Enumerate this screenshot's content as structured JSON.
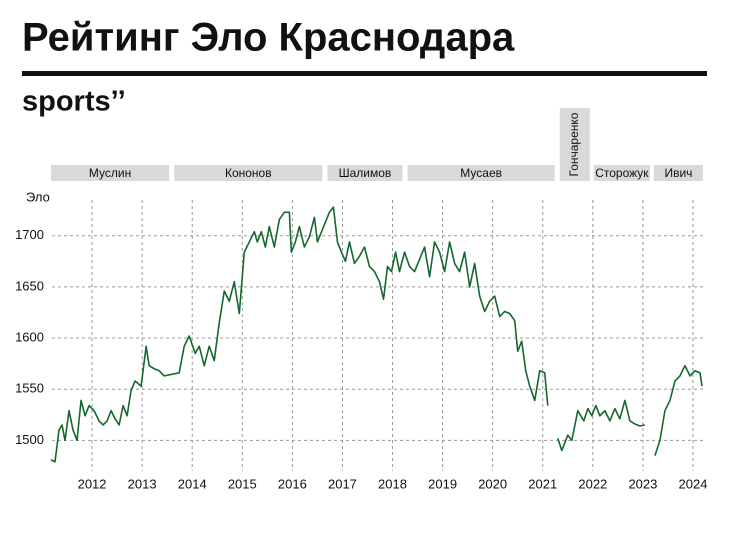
{
  "header": {
    "title": "Рейтинг Эло Краснодара",
    "logo": "sports’’"
  },
  "chart_data": {
    "type": "line",
    "y_label": "Эло",
    "xlim": [
      2011.2,
      2024.2
    ],
    "ylim": [
      1470,
      1735
    ],
    "xticks": [
      2012,
      2013,
      2014,
      2015,
      2016,
      2017,
      2018,
      2019,
      2020,
      2021,
      2022,
      2023,
      2024
    ],
    "yticks": [
      1500,
      1550,
      1600,
      1650,
      1700
    ],
    "grid": true,
    "managers": [
      {
        "name": "Муслин",
        "start": 2011.18,
        "end": 2013.54
      },
      {
        "name": "Кононов",
        "start": 2013.64,
        "end": 2016.6
      },
      {
        "name": "Шалимов",
        "start": 2016.7,
        "end": 2018.2
      },
      {
        "name": "Мусаев",
        "start": 2018.3,
        "end": 2021.24
      },
      {
        "name": "Гончаренко",
        "start": 2021.34,
        "end": 2021.94
      },
      {
        "name": "Сторожук",
        "start": 2022.02,
        "end": 2023.14
      },
      {
        "name": "Ивич",
        "start": 2023.22,
        "end": 2024.2
      }
    ],
    "series": [
      {
        "color": "#16672f",
        "x": [
          2011.18,
          2011.26,
          2011.34,
          2011.4,
          2011.46,
          2011.54,
          2011.62,
          2011.7,
          2011.78,
          2011.86,
          2011.94,
          2012.04,
          2012.14,
          2012.22,
          2012.3,
          2012.38,
          2012.46,
          2012.54,
          2012.62,
          2012.7,
          2012.78,
          2012.86,
          2012.98,
          2013.08,
          2013.14,
          2013.24,
          2013.34,
          2013.44,
          2013.74,
          2013.84,
          2013.94,
          2014.06,
          2014.14,
          2014.24,
          2014.34,
          2014.44,
          2014.54,
          2014.64,
          2014.74,
          2014.84,
          2014.94,
          2015.04,
          2015.14,
          2015.24,
          2015.3,
          2015.38,
          2015.46,
          2015.54,
          2015.64,
          2015.74,
          2015.84,
          2015.94,
          2015.98,
          2016.06,
          2016.14,
          2016.24,
          2016.34,
          2016.44,
          2016.5,
          2016.74,
          2016.82,
          2016.9,
          2016.98,
          2017.06,
          2017.14,
          2017.24,
          2017.34,
          2017.44,
          2017.54,
          2017.64,
          2017.74,
          2017.82,
          2017.9,
          2017.98,
          2018.06,
          2018.14,
          2018.24,
          2018.34,
          2018.44,
          2018.54,
          2018.64,
          2018.74,
          2018.84,
          2018.94,
          2019.04,
          2019.14,
          2019.24,
          2019.34,
          2019.44,
          2019.54,
          2019.64,
          2019.74,
          2019.84,
          2019.94,
          2020.04,
          2020.14,
          2020.24,
          2020.34,
          2020.44,
          2020.5,
          2020.58,
          2020.66,
          2020.74,
          2020.84,
          2020.94,
          2021.04,
          2021.1,
          2021.2,
          2021.3,
          2021.38,
          2021.5,
          2021.58,
          2021.7,
          2021.82,
          2021.9,
          2021.98,
          2022.06,
          2022.14,
          2022.24,
          2022.34,
          2022.44,
          2022.54,
          2022.64,
          2022.74,
          2022.84,
          2022.94,
          2023.04,
          2023.14,
          2023.24,
          2023.34,
          2023.44,
          2023.54,
          2023.64,
          2023.74,
          2023.84,
          2023.94,
          2024.04,
          2024.14,
          2024.18
        ],
        "values": [
          1481,
          1479,
          1510,
          1515,
          1500,
          1529,
          1510,
          1500,
          1539,
          1524,
          1534,
          1529,
          1519,
          1515,
          1519,
          1529,
          1521,
          1515,
          1534,
          1524,
          1549,
          1558,
          1553,
          1592,
          1573,
          1570,
          1568,
          1563,
          1566,
          1592,
          1602,
          1585,
          1592,
          1573,
          1592,
          1578,
          1615,
          1646,
          1636,
          1655,
          1624,
          1684,
          1694,
          1704,
          1694,
          1704,
          1689,
          1709,
          1689,
          1716,
          1723,
          1723,
          1684,
          1694,
          1709,
          1689,
          1699,
          1718,
          1694,
          1723,
          1728,
          1694,
          1684,
          1675,
          1694,
          1673,
          1680,
          1689,
          1670,
          1665,
          1655,
          1638,
          1670,
          1665,
          1684,
          1665,
          1684,
          1670,
          1665,
          1677,
          1689,
          1660,
          1694,
          1684,
          1665,
          1694,
          1673,
          1665,
          1684,
          1650,
          1673,
          1641,
          1626,
          1636,
          1641,
          1621,
          1626,
          1624,
          1617,
          1587,
          1597,
          1568,
          1553,
          1539,
          1568,
          1566,
          1534,
          null,
          1502,
          1490,
          1505,
          1500,
          1529,
          1519,
          1531,
          1524,
          1534,
          1524,
          1529,
          1519,
          1531,
          1521,
          1539,
          1519,
          1516,
          1514,
          1515,
          null,
          1485,
          1500,
          1529,
          1539,
          1558,
          1563,
          1573,
          1563,
          1568,
          1566,
          1553
        ]
      }
    ]
  }
}
